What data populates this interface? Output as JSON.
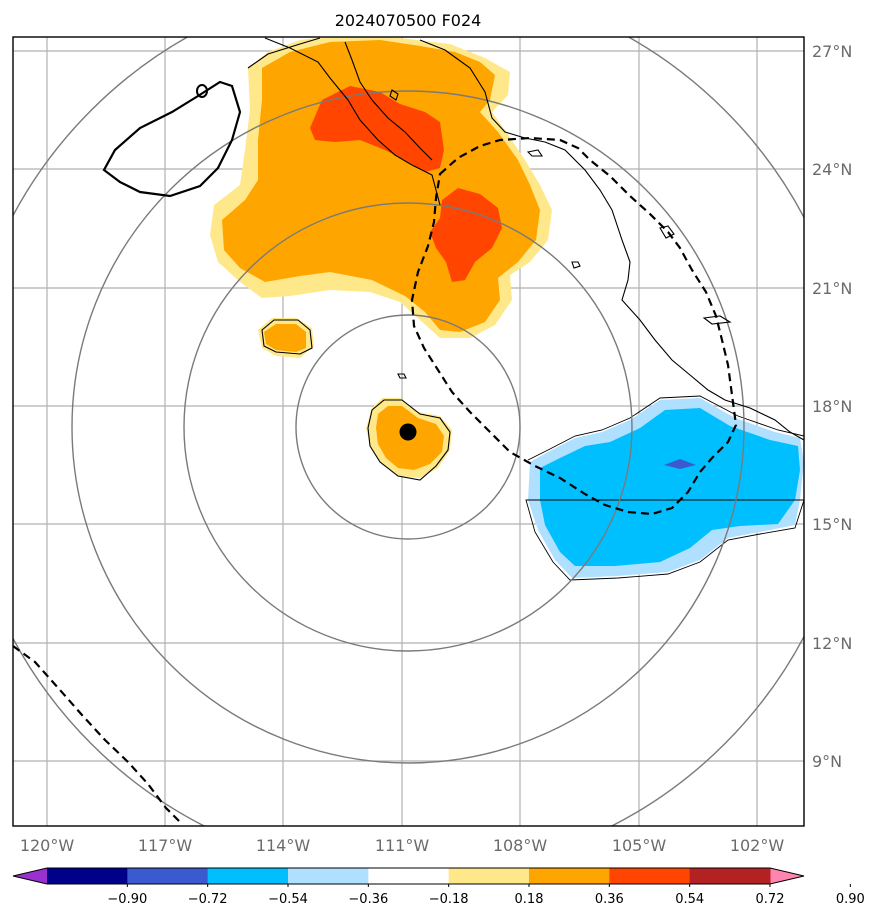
{
  "title": "2024070500 F024",
  "map": {
    "lat_labels": [
      "27°N",
      "24°N",
      "21°N",
      "18°N",
      "15°N",
      "12°N",
      "9°N"
    ],
    "lon_labels": [
      "120°W",
      "117°W",
      "114°W",
      "111°W",
      "108°W",
      "105°W",
      "102°W"
    ],
    "extent": {
      "lon": [
        -121,
        -100.7
      ],
      "lat": [
        7.5,
        27.3
      ]
    },
    "center_marker": {
      "lon": -110.9,
      "lat": 17.35
    },
    "range_rings_deg": [
      3,
      6,
      9,
      12
    ]
  },
  "colorbar": {
    "tick_labels": [
      "−0.90",
      "−0.72",
      "−0.54",
      "−0.36",
      "−0.18",
      "0.18",
      "0.36",
      "0.54",
      "0.72",
      "0.90"
    ],
    "colors": [
      "#9b30d0",
      "#00008b",
      "#3a5bd0",
      "#00bfff",
      "#b0e0ff",
      "#ffffff",
      "#ffe88a",
      "#ffa500",
      "#ff4500",
      "#b22222",
      "#ff85b0"
    ],
    "extend": "both"
  }
}
